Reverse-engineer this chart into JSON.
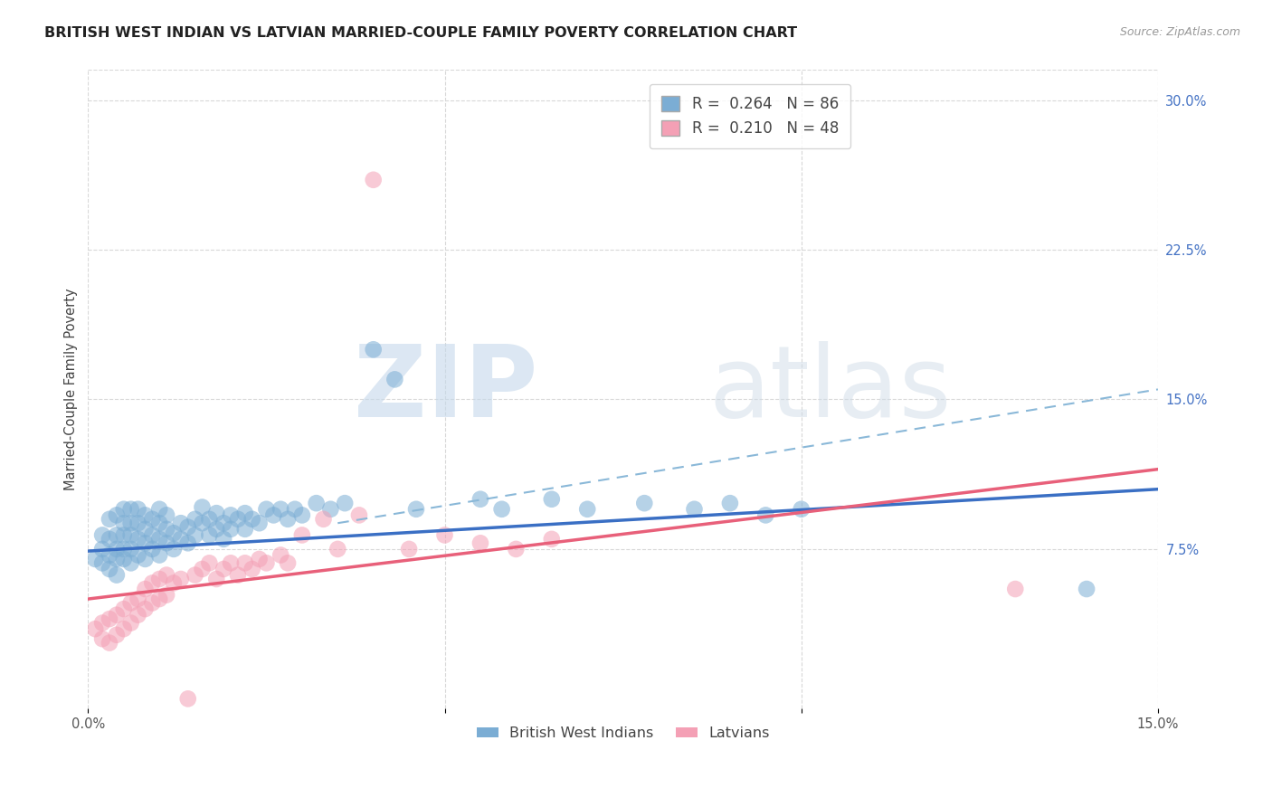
{
  "title": "BRITISH WEST INDIAN VS LATVIAN MARRIED-COUPLE FAMILY POVERTY CORRELATION CHART",
  "source": "Source: ZipAtlas.com",
  "ylabel": "Married-Couple Family Poverty",
  "xlim": [
    0.0,
    0.15
  ],
  "ylim": [
    -0.005,
    0.315
  ],
  "xtick_positions": [
    0.0,
    0.05,
    0.1,
    0.15
  ],
  "xtick_labels": [
    "0.0%",
    "",
    "",
    "15.0%"
  ],
  "ytick_positions": [
    0.075,
    0.15,
    0.225,
    0.3
  ],
  "ytick_labels": [
    "7.5%",
    "15.0%",
    "22.5%",
    "30.0%"
  ],
  "bwi_color": "#7badd4",
  "latvian_color": "#f4a0b5",
  "bwi_line_color": "#3a6fc4",
  "latvian_line_color": "#e8607a",
  "bwi_dash_color": "#8ab8d8",
  "bwi_R": 0.264,
  "bwi_N": 86,
  "latvian_R": 0.21,
  "latvian_N": 48,
  "bwi_scatter_x": [
    0.001,
    0.002,
    0.002,
    0.002,
    0.003,
    0.003,
    0.003,
    0.003,
    0.004,
    0.004,
    0.004,
    0.004,
    0.004,
    0.005,
    0.005,
    0.005,
    0.005,
    0.005,
    0.006,
    0.006,
    0.006,
    0.006,
    0.006,
    0.007,
    0.007,
    0.007,
    0.007,
    0.008,
    0.008,
    0.008,
    0.008,
    0.009,
    0.009,
    0.009,
    0.01,
    0.01,
    0.01,
    0.01,
    0.011,
    0.011,
    0.011,
    0.012,
    0.012,
    0.013,
    0.013,
    0.014,
    0.014,
    0.015,
    0.015,
    0.016,
    0.016,
    0.017,
    0.017,
    0.018,
    0.018,
    0.019,
    0.019,
    0.02,
    0.02,
    0.021,
    0.022,
    0.022,
    0.023,
    0.024,
    0.025,
    0.026,
    0.027,
    0.028,
    0.029,
    0.03,
    0.032,
    0.034,
    0.036,
    0.04,
    0.043,
    0.046,
    0.055,
    0.058,
    0.065,
    0.07,
    0.078,
    0.085,
    0.09,
    0.095,
    0.1,
    0.14
  ],
  "bwi_scatter_y": [
    0.07,
    0.068,
    0.075,
    0.082,
    0.065,
    0.072,
    0.08,
    0.09,
    0.062,
    0.07,
    0.075,
    0.082,
    0.092,
    0.07,
    0.075,
    0.082,
    0.088,
    0.095,
    0.068,
    0.075,
    0.082,
    0.088,
    0.095,
    0.072,
    0.08,
    0.088,
    0.095,
    0.07,
    0.078,
    0.085,
    0.092,
    0.075,
    0.082,
    0.09,
    0.072,
    0.08,
    0.088,
    0.095,
    0.078,
    0.085,
    0.092,
    0.075,
    0.083,
    0.08,
    0.088,
    0.078,
    0.086,
    0.082,
    0.09,
    0.088,
    0.096,
    0.082,
    0.09,
    0.085,
    0.093,
    0.08,
    0.088,
    0.085,
    0.092,
    0.09,
    0.085,
    0.093,
    0.09,
    0.088,
    0.095,
    0.092,
    0.095,
    0.09,
    0.095,
    0.092,
    0.098,
    0.095,
    0.098,
    0.175,
    0.16,
    0.095,
    0.1,
    0.095,
    0.1,
    0.095,
    0.098,
    0.095,
    0.098,
    0.092,
    0.095,
    0.055
  ],
  "latvian_scatter_x": [
    0.001,
    0.002,
    0.002,
    0.003,
    0.003,
    0.004,
    0.004,
    0.005,
    0.005,
    0.006,
    0.006,
    0.007,
    0.007,
    0.008,
    0.008,
    0.009,
    0.009,
    0.01,
    0.01,
    0.011,
    0.011,
    0.012,
    0.013,
    0.014,
    0.015,
    0.016,
    0.017,
    0.018,
    0.019,
    0.02,
    0.021,
    0.022,
    0.023,
    0.024,
    0.025,
    0.027,
    0.028,
    0.03,
    0.033,
    0.035,
    0.038,
    0.04,
    0.045,
    0.05,
    0.055,
    0.06,
    0.065,
    0.13
  ],
  "latvian_scatter_y": [
    0.035,
    0.03,
    0.038,
    0.028,
    0.04,
    0.032,
    0.042,
    0.035,
    0.045,
    0.038,
    0.048,
    0.042,
    0.05,
    0.045,
    0.055,
    0.048,
    0.058,
    0.05,
    0.06,
    0.052,
    0.062,
    0.058,
    0.06,
    0.0,
    0.062,
    0.065,
    0.068,
    0.06,
    0.065,
    0.068,
    0.062,
    0.068,
    0.065,
    0.07,
    0.068,
    0.072,
    0.068,
    0.082,
    0.09,
    0.075,
    0.092,
    0.26,
    0.075,
    0.082,
    0.078,
    0.075,
    0.08,
    0.055
  ],
  "watermark_zip": "ZIP",
  "watermark_atlas": "atlas",
  "background_color": "#ffffff",
  "grid_color": "#d8d8d8",
  "title_fontsize": 11.5,
  "label_fontsize": 10.5,
  "tick_fontsize": 10.5,
  "legend_fontsize": 12,
  "bwi_trendline": [
    0.0,
    0.15,
    0.074,
    0.105
  ],
  "latvian_trendline": [
    0.0,
    0.15,
    0.05,
    0.115
  ],
  "bwi_dashline": [
    0.035,
    0.15,
    0.088,
    0.155
  ]
}
